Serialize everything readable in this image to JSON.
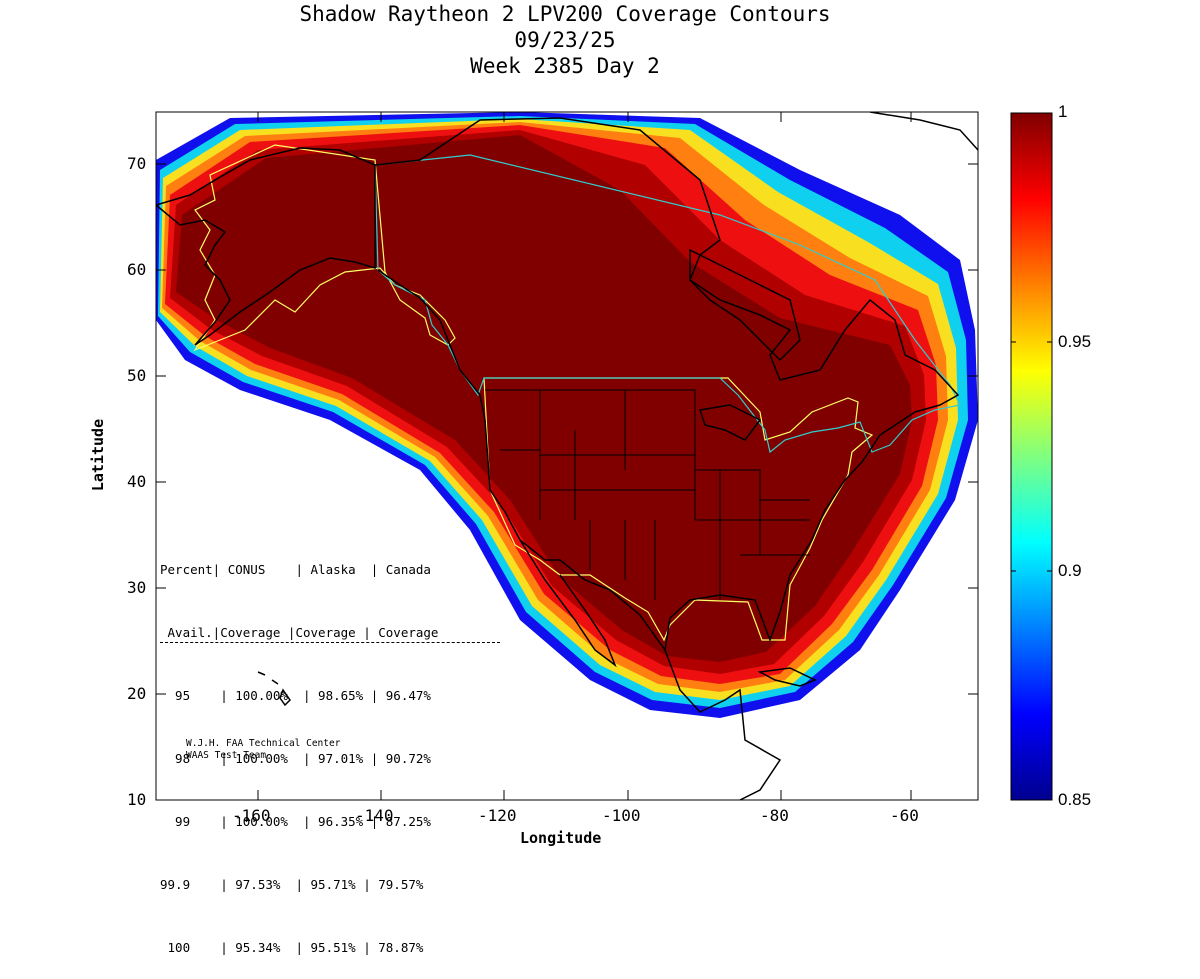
{
  "title": {
    "line1": "Shadow Raytheon 2 LPV200 Coverage Contours",
    "line2": "09/23/25",
    "line3": "Week 2385 Day 2"
  },
  "axes": {
    "xlabel": "Longitude",
    "ylabel": "Latitude",
    "xticks": [
      "-160",
      "-140",
      "-120",
      "-100",
      "-80",
      "-60"
    ],
    "yticks": [
      "70",
      "60",
      "50",
      "40",
      "30",
      "20",
      "10"
    ],
    "xlim": [
      -175,
      -50
    ],
    "ylim": [
      10,
      75
    ]
  },
  "colorbar": {
    "ticks": [
      "1",
      "0.95",
      "0.9",
      "0.85"
    ],
    "range": [
      0.85,
      1.0
    ],
    "colormap": "jet"
  },
  "table": {
    "header1": "Percent| CONUS    | Alaska  | Canada",
    "header2": " Avail.|Coverage |Coverage | Coverage",
    "rows": [
      "  95    | 100.00%  | 98.65% | 96.47%",
      "  98    | 100.00%  | 97.01% | 90.72%",
      "  99    | 100.00%  | 96.35% | 87.25%",
      "99.9    | 97.53%  | 95.71% | 79.57%",
      " 100    | 95.34%  | 95.51% | 78.87%"
    ]
  },
  "credit": {
    "line1": "W.J.H. FAA Technical Center",
    "line2": "WAAS Test Team"
  },
  "colors": {
    "coverage_core": "#800000",
    "conus_boundary": "#ffff66",
    "canada_boundary": "#33cccc",
    "land_outline": "#000000"
  }
}
